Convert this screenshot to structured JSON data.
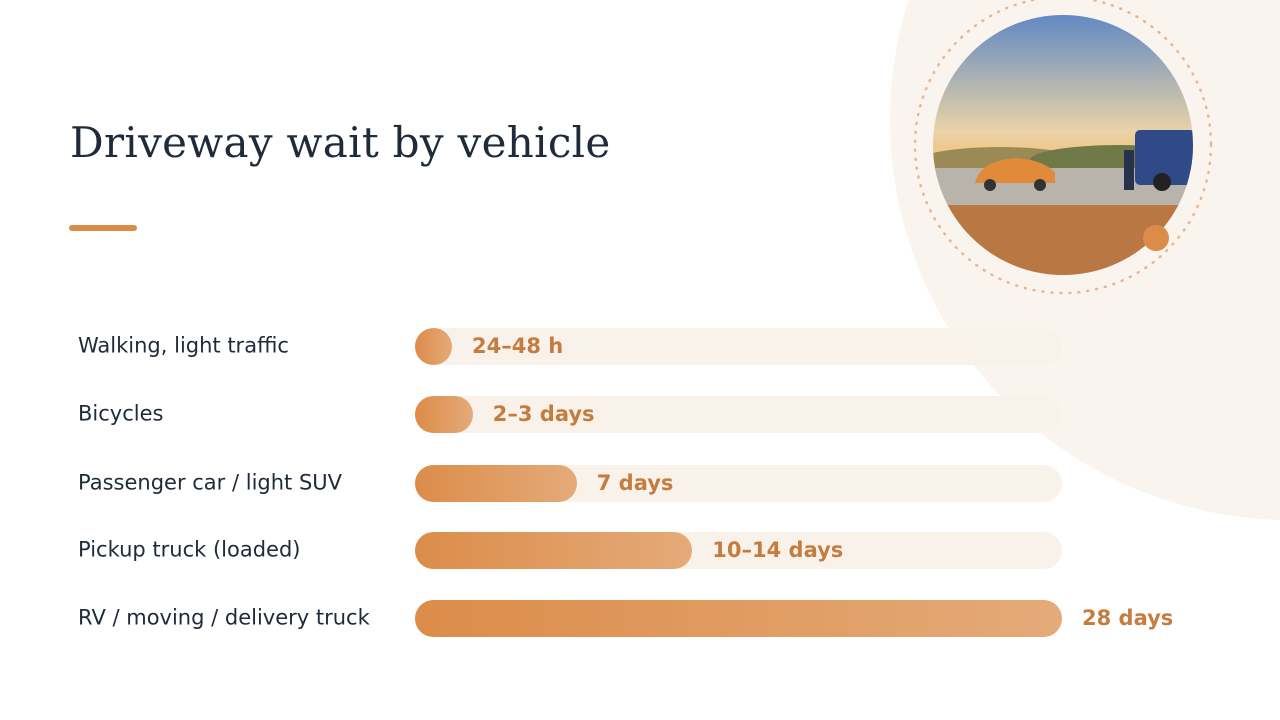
{
  "chart_data": {
    "type": "bar",
    "orientation": "horizontal",
    "title": "Driveway wait by vehicle",
    "categories": [
      "Walking, light traffic",
      "Bicycles",
      "Passenger car / light SUV",
      "Pickup truck (loaded)",
      "RV / moving / delivery truck"
    ],
    "values": [
      1.5,
      2.5,
      7,
      12,
      28
    ],
    "value_labels": [
      "24–48 h",
      "2–3 days",
      "7 days",
      "10–14 days",
      "28 days"
    ],
    "xlim": [
      0,
      28
    ],
    "color": "#dc8c49"
  }
}
